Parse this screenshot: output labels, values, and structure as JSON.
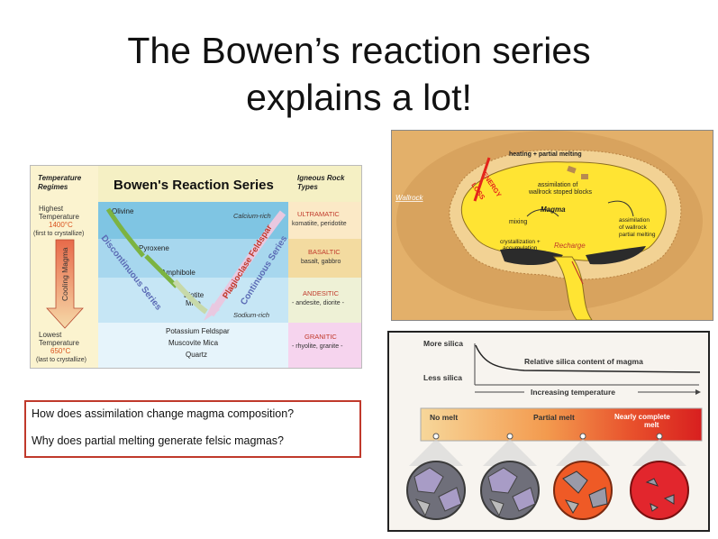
{
  "slide": {
    "title_line1": "The Bowen’s reaction series",
    "title_line2": "explains a lot!",
    "questions": [
      "How does assimilation change magma composition?",
      "Why does partial melting generate felsic magmas?"
    ]
  },
  "bowen": {
    "col1_header": [
      "Temperature",
      "Regimes"
    ],
    "title": "Bowen's Reaction Series",
    "col3_header": [
      "Igneous Rock",
      "Types"
    ],
    "high_temp": [
      "Highest",
      "Temperature"
    ],
    "high_temp_value": "1400°C",
    "high_temp_note": "(first to crystallize)",
    "cooling_label": "Cooling Magma",
    "low_temp": [
      "Lowest",
      "Temperature"
    ],
    "low_temp_value": "650°C",
    "low_temp_note": "(last to crystallize)",
    "minerals": [
      "Olivine",
      "Pyroxene",
      "Amphibole",
      "Biotite",
      "Mica",
      "Potassium Feldspar",
      "Muscovite Mica",
      "Quartz"
    ],
    "calcium_rich": "Calcium-rich",
    "sodium_rich": "Sodium-rich",
    "plagioclase": "Plagioclase Feldspar",
    "discontinuous": "Discontinuous Series",
    "continuous": "Continuous Series",
    "rock_types": [
      {
        "name": "ULTRAMATIC",
        "examples": "komatiite, peridotite",
        "color": "#fbe9c6"
      },
      {
        "name": "BASALTIC",
        "examples": "basalt, gabbro",
        "color": "#f3dba0"
      },
      {
        "name": "ANDESITIC",
        "examples": "- andesite, diorite -",
        "color": "#eef1d6"
      },
      {
        "name": "GRANITIC",
        "examples": "- rhyolite, granite -",
        "color": "#f6d4ee"
      }
    ],
    "band_colors": [
      "#7fc5e3",
      "#a7d7ee",
      "#c6e6f5",
      "#e6f4fb"
    ]
  },
  "magma": {
    "wallrock": "Wallrock",
    "heating": "heating + partial melting",
    "assimilation_top": [
      "assimilation of",
      "wallrock stoped blocks"
    ],
    "magma_label": "Magma",
    "energy": "ENERGY",
    "loss": "LOSS",
    "mixing": "mixing",
    "crystallization": [
      "crystallization +",
      "accumulation"
    ],
    "recharge": "Recharge",
    "assimilation_right": [
      "assimilation",
      "of wallrock",
      "partial melting"
    ]
  },
  "silica": {
    "more_silica": "More silica",
    "less_silica": "Less silica",
    "relative": "Relative silica content of magma",
    "increasing": "Increasing temperature",
    "no_melt": "No melt",
    "partial_melt": "Partial melt",
    "nearly_complete": [
      "Nearly complete",
      "melt"
    ]
  }
}
